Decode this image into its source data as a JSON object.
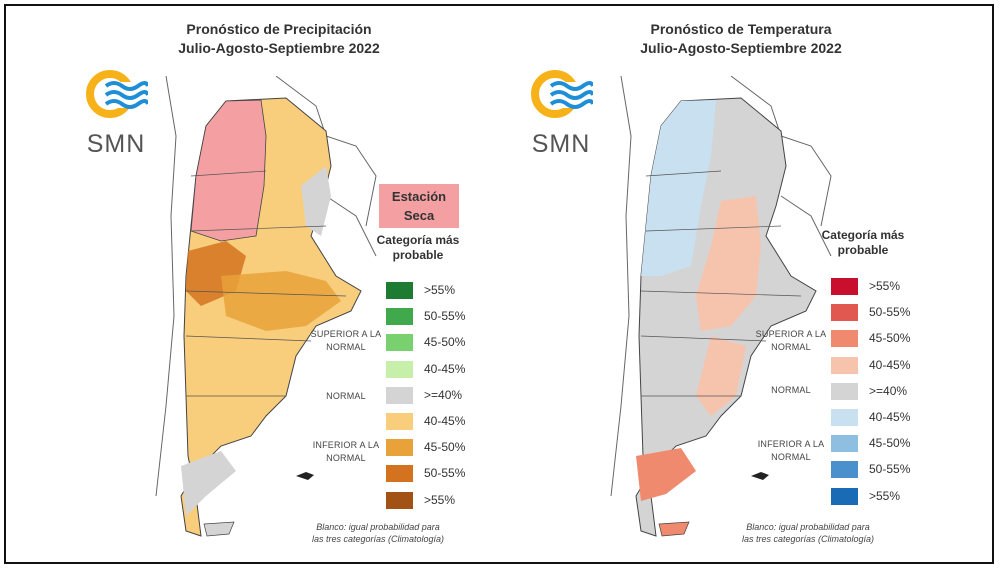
{
  "brand": {
    "logo_text": "SMN",
    "colors": {
      "sun": "#f7b21a",
      "waves": "#1e8fd6"
    }
  },
  "panels": [
    {
      "id": "precipitation",
      "title_line1": "Pronóstico de Precipitación",
      "title_line2": "Julio-Agosto-Septiembre 2022",
      "special_label": "Estación Seca",
      "special_color": "#f4a0a2",
      "legend_title": "Categoría más probable",
      "legend": [
        {
          "label": ">55%",
          "color": "#1e7b32"
        },
        {
          "label": "50-55%",
          "color": "#3fa94c"
        },
        {
          "label": "45-50%",
          "color": "#79d06e"
        },
        {
          "label": "40-45%",
          "color": "#c6efaa"
        },
        {
          "label": ">=40%",
          "color": "#d4d4d4"
        },
        {
          "label": "40-45%",
          "color": "#f8cd7c"
        },
        {
          "label": "45-50%",
          "color": "#e9a23a"
        },
        {
          "label": "50-55%",
          "color": "#d4731f"
        },
        {
          "label": ">55%",
          "color": "#a35215"
        }
      ],
      "groups": {
        "superior": "SUPERIOR A LA NORMAL",
        "normal": "NORMAL",
        "inferior": "INFERIOR A LA NORMAL"
      },
      "note_line1": "Blanco: igual probabilidad para",
      "note_line2": "las tres categorías (Climatología)"
    },
    {
      "id": "temperature",
      "title_line1": "Pronóstico de Temperatura",
      "title_line2": "Julio-Agosto-Septiembre 2022",
      "legend_title": "Categoría más probable",
      "legend": [
        {
          "label": ">55%",
          "color": "#c8102e"
        },
        {
          "label": "50-55%",
          "color": "#e0584f"
        },
        {
          "label": "45-50%",
          "color": "#f08a6e"
        },
        {
          "label": "40-45%",
          "color": "#f6c3ad"
        },
        {
          "label": ">=40%",
          "color": "#d4d4d4"
        },
        {
          "label": "40-45%",
          "color": "#c8e0f0"
        },
        {
          "label": "45-50%",
          "color": "#8fbfe0"
        },
        {
          "label": "50-55%",
          "color": "#4a90cc"
        },
        {
          "label": ">55%",
          "color": "#1a6bb5"
        }
      ],
      "groups": {
        "superior": "SUPERIOR A LA NORMAL",
        "normal": "NORMAL",
        "inferior": "INFERIOR A LA NORMAL"
      },
      "note_line1": "Blanco: igual probabilidad para",
      "note_line2": "las tres categorías (Climatología)"
    }
  ]
}
